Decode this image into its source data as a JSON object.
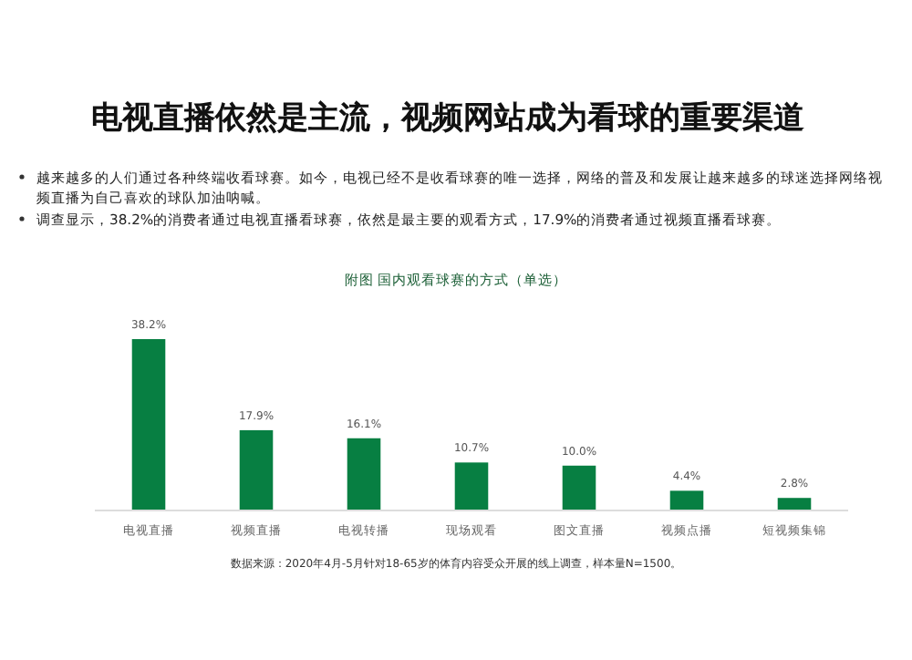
{
  "chart_data": {
    "type": "bar",
    "title": "电视直播依然是主流，视频网站成为看球的重要渠道",
    "subtitle": "附图  国内观看球赛的方式（单选）",
    "annotations": [
      "越来越多的人们通过各种终端收看球赛。如今，电视已经不是收看球赛的唯一选择，网络的普及和发展让越来越多的球迷选择网络视频直播为自己喜欢的球队加油呐喊。",
      "调查显示，38.2%的消费者通过电视直播看球赛，依然是最主要的观看方式，17.9%的消费者通过视频直播看球赛。",
      "数据来源：2020年4月-5月针对18-65岁的体育内容受众开展的线上调查，样本量N=1500。"
    ],
    "categories": [
      "电视直播",
      "视频直播",
      "电视转播",
      "现场观看",
      "图文直播",
      "视频点播",
      "短视频集锦"
    ],
    "values": [
      38.2,
      17.9,
      16.1,
      10.7,
      10.0,
      4.4,
      2.8
    ],
    "value_labels": [
      "38.2%",
      "17.9%",
      "16.1%",
      "10.7%",
      "10.0%",
      "4.4%",
      "2.8%"
    ],
    "color": "#077f42"
  }
}
